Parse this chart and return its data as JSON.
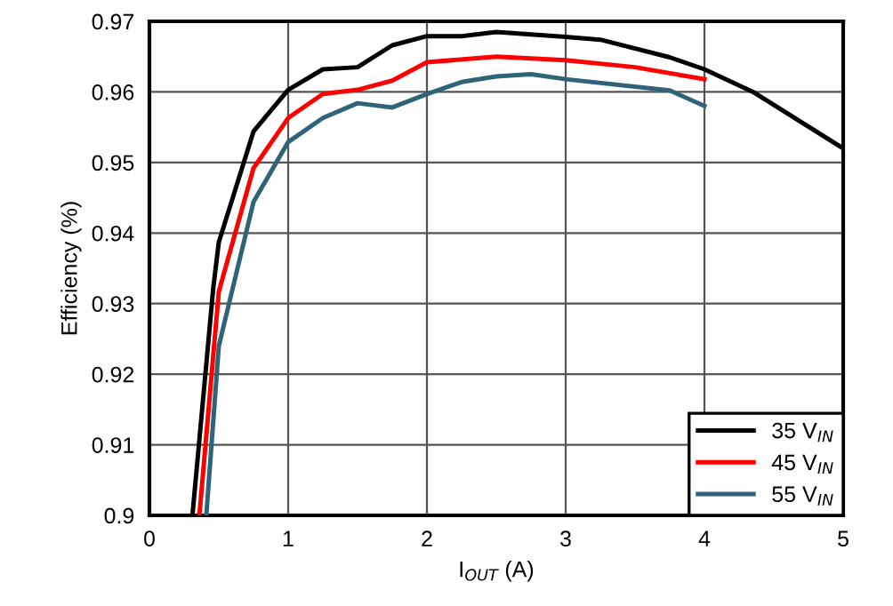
{
  "chart_data": {
    "type": "line",
    "xlabel": "I$_{OUT}$ (A)",
    "ylabel": "Efficiency (%)",
    "xlim": [
      0,
      5
    ],
    "ylim": [
      0.9,
      0.97
    ],
    "xticks": [
      0,
      1,
      2,
      3,
      4,
      5
    ],
    "yticks": [
      0.9,
      0.91,
      0.92,
      0.93,
      0.94,
      0.95,
      0.96,
      0.97
    ],
    "grid": true,
    "legend": "bottom right",
    "line_style": "solid",
    "series": [
      {
        "name": "35 V$_{IN}$",
        "color": "#000000",
        "x": [
          0.31,
          0.46,
          0.5,
          0.75,
          1.0,
          1.25,
          1.5,
          1.75,
          2.0,
          2.25,
          2.5,
          3.0,
          3.25,
          3.75,
          4.0,
          4.35,
          5.0
        ],
        "values": [
          0.9,
          0.9322,
          0.9387,
          0.9544,
          0.9603,
          0.9632,
          0.9635,
          0.9666,
          0.9679,
          0.9679,
          0.9685,
          0.9678,
          0.9674,
          0.9649,
          0.9632,
          0.96,
          0.952
        ]
      },
      {
        "name": "45 V$_{IN}$",
        "color": "#ff0000",
        "x": [
          0.36,
          0.5,
          0.75,
          1.0,
          1.25,
          1.5,
          1.75,
          2.0,
          2.5,
          3.0,
          3.5,
          4.0
        ],
        "values": [
          0.9,
          0.9317,
          0.9492,
          0.9563,
          0.9597,
          0.9603,
          0.9616,
          0.9642,
          0.965,
          0.9645,
          0.9635,
          0.9618
        ]
      },
      {
        "name": "55 V$_{IN}$",
        "color": "#2f6378",
        "x": [
          0.41,
          0.5,
          0.75,
          1.0,
          1.25,
          1.5,
          1.75,
          2.0,
          2.25,
          2.5,
          2.75,
          3.0,
          3.75,
          4.0
        ],
        "values": [
          0.9,
          0.924,
          0.9444,
          0.9529,
          0.9563,
          0.9584,
          0.9578,
          0.9597,
          0.9614,
          0.9622,
          0.9625,
          0.9618,
          0.9602,
          0.958
        ]
      }
    ]
  }
}
